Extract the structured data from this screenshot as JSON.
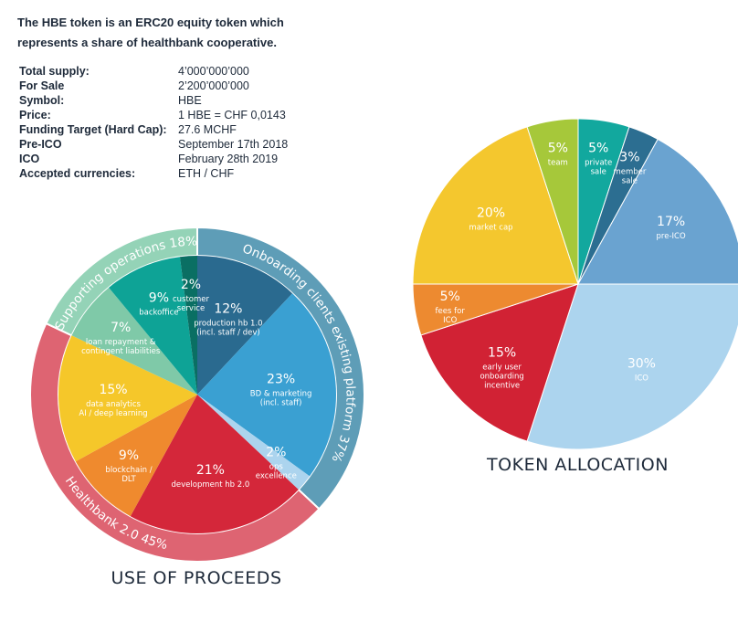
{
  "intro": {
    "line1": "The HBE token is an ERC20 equity token which",
    "line2": "represents a share of healthbank cooperative."
  },
  "specs": [
    {
      "label": "Total supply:",
      "value": "4’000’000’000"
    },
    {
      "label": "For Sale",
      "value": "2’200’000’000"
    },
    {
      "label": "Symbol:",
      "value": "HBE"
    },
    {
      "label": "Price:",
      "value": "1 HBE = CHF 0,0143"
    },
    {
      "label": "Funding Target (Hard Cap):",
      "value": "27.6 MCHF"
    },
    {
      "label": "Pre-ICO",
      "value": "September 17th 2018"
    },
    {
      "label": "ICO",
      "value": "February 28th 2019"
    },
    {
      "label": "Accepted currencies:",
      "value": "ETH / CHF"
    }
  ],
  "chart_data": [
    {
      "type": "pie",
      "title": "USE OF PROCEEDS",
      "series": [
        {
          "values": [
            12,
            23,
            2,
            21,
            9,
            15,
            7,
            9,
            2
          ],
          "labels": [
            "production hb 1.0\n(incl. staff / dev)",
            "BD & marketing\n(incl. staff)",
            "ops\nexcellence",
            "development hb 2.0",
            "blockchain /\nDLT",
            "data analytics\nAI / deep learning",
            "loan repayment &\ncontingent liabilities",
            "backoffice",
            "customer\nservice"
          ],
          "colors": [
            "#2a6a8f",
            "#3aa0d2",
            "#acd4ee",
            "#d4273a",
            "#ef8a2e",
            "#f5c72a",
            "#7fc9a8",
            "#0ea396",
            "#0a6f63"
          ]
        }
      ],
      "groups": [
        {
          "name": "Onboarding clients existing platform 37%",
          "members": [
            0,
            1,
            2
          ],
          "color": "#5e9db7"
        },
        {
          "name": "Healthbank 2.0 45%",
          "members": [
            3,
            4,
            5
          ],
          "color": "#de6472"
        },
        {
          "name": "Supporting operations 18%",
          "members": [
            6,
            7,
            8
          ],
          "color": "#94d3b7"
        }
      ]
    },
    {
      "type": "pie",
      "title": "TOKEN ALLOCATION",
      "series": [
        {
          "values": [
            5,
            3,
            17,
            30,
            15,
            5,
            20,
            5
          ],
          "labels": [
            "private\nsale",
            "member\nsale",
            "pre-ICO",
            "ICO",
            "early user\nonboarding\nincentive",
            "fees for\nICO",
            "market cap",
            "team"
          ],
          "colors": [
            "#12a89e",
            "#2c6e91",
            "#6aa3d0",
            "#acd4ee",
            "#d12234",
            "#ed8a30",
            "#f4c72e",
            "#a6c83a"
          ]
        }
      ]
    }
  ]
}
